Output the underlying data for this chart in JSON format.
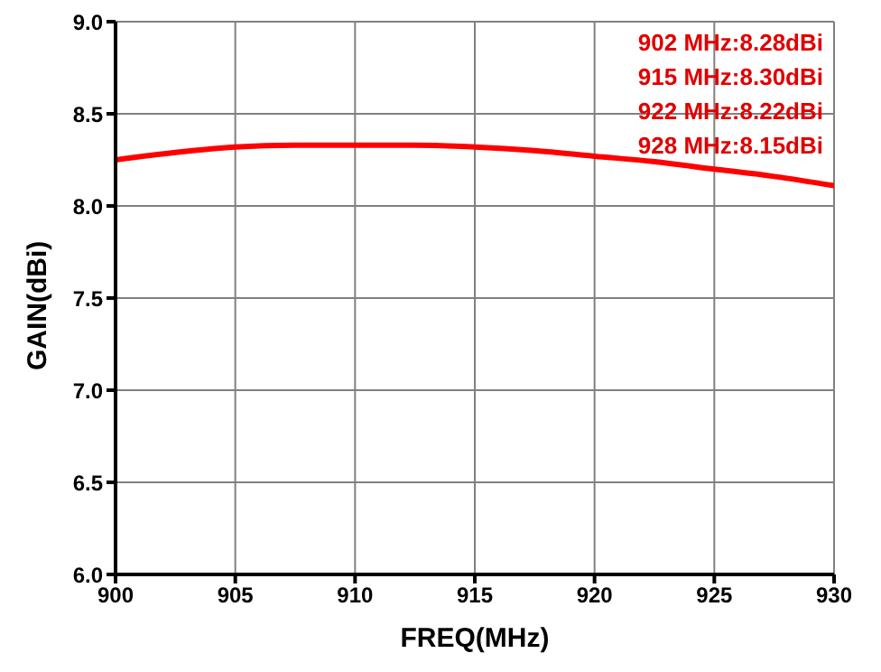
{
  "chart_data": {
    "type": "line",
    "xlabel": "FREQ(MHz)",
    "ylabel": "GAIN(dBi)",
    "x": [
      900,
      902.5,
      905,
      907.5,
      910,
      912.5,
      915,
      917.5,
      920,
      922.5,
      925,
      927.5,
      930
    ],
    "series": [
      {
        "color": "#ff0000",
        "values": [
          8.25,
          8.29,
          8.32,
          8.33,
          8.33,
          8.33,
          8.32,
          8.3,
          8.27,
          8.24,
          8.2,
          8.16,
          8.11
        ]
      }
    ],
    "xlim": [
      900,
      930
    ],
    "xticks": [
      900,
      905,
      910,
      915,
      920,
      925,
      930
    ],
    "ylim": [
      6.0,
      9.0
    ],
    "yticks": [
      {
        "value": 6,
        "label": "6.0"
      },
      {
        "value": 6.5,
        "label": "6.5"
      },
      {
        "value": 7,
        "label": "7.0"
      },
      {
        "value": 7.5,
        "label": "7.5"
      },
      {
        "value": 8,
        "label": "8.0"
      },
      {
        "value": 8.5,
        "label": "8.5"
      },
      {
        "value": 9,
        "label": "9.0"
      }
    ],
    "grid": true,
    "marker": "none",
    "line_style": "solid",
    "annotations": [
      "902 MHz:8.28dBi",
      "915 MHz:8.30dBi",
      "922 MHz:8.22dBi",
      "928 MHz:8.15dBi"
    ]
  }
}
